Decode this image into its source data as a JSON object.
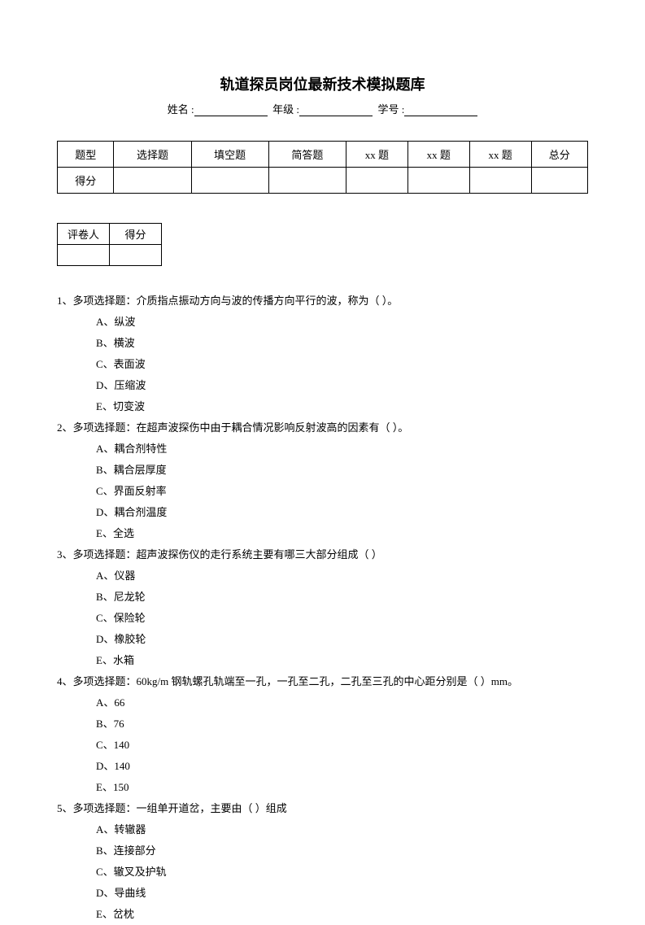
{
  "title": "轨道探员岗位最新技术模拟题库",
  "info": {
    "name_label": "姓名 :",
    "grade_label": "年级 :",
    "id_label": "学号 :"
  },
  "score_table": {
    "row1": [
      "题型",
      "选择题",
      "填空题",
      "简答题",
      "xx 题",
      "xx 题",
      "xx 题",
      "总分"
    ],
    "row2_label": "得分"
  },
  "grader_table": {
    "col1": "评卷人",
    "col2": "得分"
  },
  "questions": [
    {
      "num": "1、",
      "type": "多项选择题：",
      "text": "介质指点振动方向与波的传播方向平行的波，称为（    ）。",
      "options": [
        "A、纵波",
        "B、横波",
        "C、表面波",
        "D、压缩波",
        "E、切变波"
      ]
    },
    {
      "num": "2、",
      "type": "多项选择题：",
      "text": "在超声波探伤中由于耦合情况影响反射波高的因素有（    ）。",
      "options": [
        "A、耦合剂特性",
        "B、耦合层厚度",
        "C、界面反射率",
        "D、耦合剂温度",
        "E、全选"
      ]
    },
    {
      "num": "3、",
      "type": "多项选择题：",
      "text": "超声波探伤仪的走行系统主要有哪三大部分组成（    ）",
      "options": [
        "A、仪器",
        "B、尼龙轮",
        "C、保险轮",
        "D、橡胶轮",
        "E、水箱"
      ]
    },
    {
      "num": "4、",
      "type": "多项选择题：",
      "text": "60kg/m 钢轨螺孔轨端至一孔，一孔至二孔，二孔至三孔的中心距分别是（     ）mm。",
      "options": [
        "A、66",
        "B、76",
        "C、140",
        "D、140",
        "E、150"
      ]
    },
    {
      "num": "5、",
      "type": "多项选择题：",
      "text": "一组单开道岔，主要由（    ）组成",
      "options": [
        "A、转辙器",
        "B、连接部分",
        "C、辙叉及护轨",
        "D、导曲线",
        "E、岔枕"
      ]
    }
  ]
}
